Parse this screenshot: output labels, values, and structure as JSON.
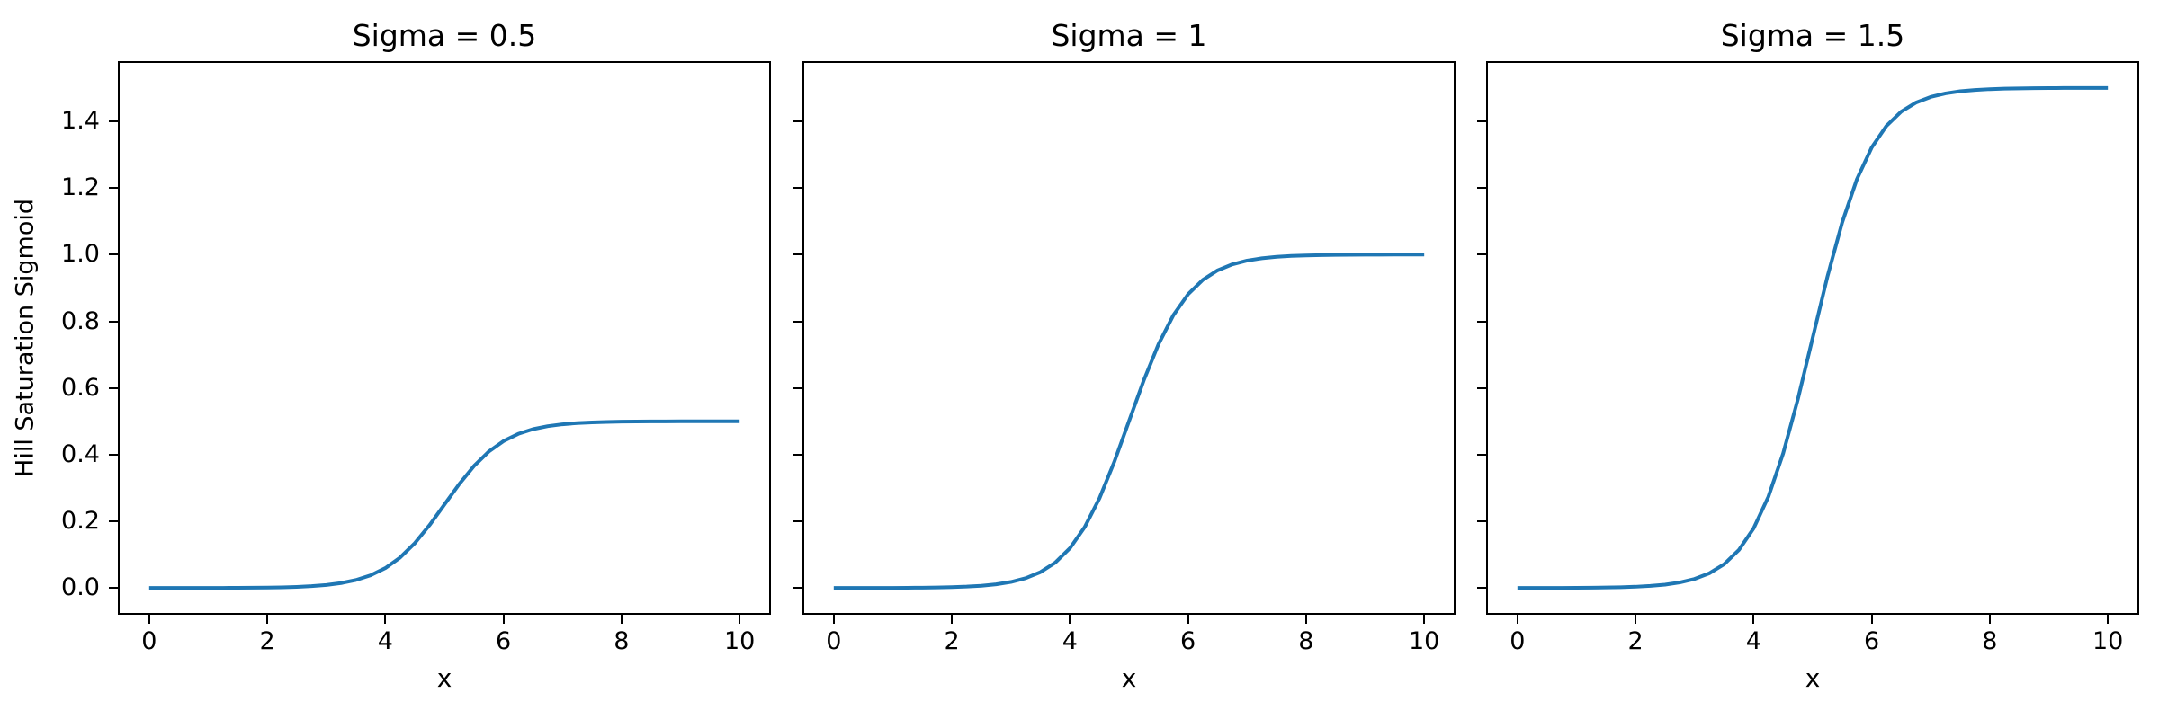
{
  "figure": {
    "background_color": "#ffffff",
    "text_color": "#000000",
    "spine_color": "#000000"
  },
  "ylabel": "Hill Saturation Sigmoid",
  "chart_data": [
    {
      "type": "line",
      "title": "Sigma = 0.5",
      "xlabel": "x",
      "line_color": "#1f77b4",
      "xlim": [
        -0.5,
        10.5
      ],
      "ylim": [
        -0.075,
        1.575
      ],
      "xticks": {
        "values": [
          0,
          2,
          4,
          6,
          8,
          10
        ],
        "labels": [
          "0",
          "2",
          "4",
          "6",
          "8",
          "10"
        ]
      },
      "yticks": {
        "values": [
          0.0,
          0.2,
          0.4,
          0.6,
          0.8,
          1.0,
          1.2,
          1.4
        ],
        "labels": [
          "0.0",
          "0.2",
          "0.4",
          "0.6",
          "0.8",
          "1.0",
          "1.2",
          "1.4"
        ],
        "show_labels": true
      },
      "grid": false,
      "legend": null,
      "x": [
        0,
        0.25,
        0.5,
        0.75,
        1,
        1.25,
        1.5,
        1.75,
        2,
        2.25,
        2.5,
        2.75,
        3,
        3.25,
        3.5,
        3.75,
        4,
        4.25,
        4.5,
        4.75,
        5,
        5.25,
        5.5,
        5.75,
        6,
        6.25,
        6.5,
        6.75,
        7,
        7.25,
        7.5,
        7.75,
        8,
        8.25,
        8.5,
        8.75,
        9,
        9.25,
        9.5,
        9.75,
        10
      ],
      "y": [
        0.0,
        0.0,
        0.0001,
        0.0001,
        0.0002,
        0.0003,
        0.0005,
        0.0008,
        0.0012,
        0.002,
        0.0033,
        0.0055,
        0.009,
        0.0147,
        0.0237,
        0.0379,
        0.0596,
        0.0912,
        0.1345,
        0.1888,
        0.25,
        0.3112,
        0.3655,
        0.4088,
        0.4404,
        0.4621,
        0.4763,
        0.4853,
        0.491,
        0.4945,
        0.4967,
        0.498,
        0.4988,
        0.4992,
        0.4995,
        0.4997,
        0.4998,
        0.4999,
        0.4999,
        0.5,
        0.5
      ]
    },
    {
      "type": "line",
      "title": "Sigma = 1",
      "xlabel": "x",
      "line_color": "#1f77b4",
      "xlim": [
        -0.5,
        10.5
      ],
      "ylim": [
        -0.075,
        1.575
      ],
      "xticks": {
        "values": [
          0,
          2,
          4,
          6,
          8,
          10
        ],
        "labels": [
          "0",
          "2",
          "4",
          "6",
          "8",
          "10"
        ]
      },
      "yticks": {
        "values": [
          0.0,
          0.2,
          0.4,
          0.6,
          0.8,
          1.0,
          1.2,
          1.4
        ],
        "labels": [
          "0.0",
          "0.2",
          "0.4",
          "0.6",
          "0.8",
          "1.0",
          "1.2",
          "1.4"
        ],
        "show_labels": false
      },
      "grid": false,
      "legend": null,
      "x": [
        0,
        0.25,
        0.5,
        0.75,
        1,
        1.25,
        1.5,
        1.75,
        2,
        2.25,
        2.5,
        2.75,
        3,
        3.25,
        3.5,
        3.75,
        4,
        4.25,
        4.5,
        4.75,
        5,
        5.25,
        5.5,
        5.75,
        6,
        6.25,
        6.5,
        6.75,
        7,
        7.25,
        7.5,
        7.75,
        8,
        8.25,
        8.5,
        8.75,
        9,
        9.25,
        9.5,
        9.75,
        10
      ],
      "y": [
        0.0,
        0.0001,
        0.0001,
        0.0002,
        0.0003,
        0.0006,
        0.0009,
        0.0015,
        0.0025,
        0.0041,
        0.0067,
        0.011,
        0.018,
        0.0293,
        0.0474,
        0.0759,
        0.1192,
        0.1824,
        0.2689,
        0.3775,
        0.5,
        0.6225,
        0.7311,
        0.8176,
        0.8808,
        0.9241,
        0.9526,
        0.9707,
        0.982,
        0.989,
        0.9933,
        0.9959,
        0.9975,
        0.9985,
        0.9991,
        0.9994,
        0.9997,
        0.9998,
        0.9999,
        0.9999,
        1.0
      ]
    },
    {
      "type": "line",
      "title": "Sigma = 1.5",
      "xlabel": "x",
      "line_color": "#1f77b4",
      "xlim": [
        -0.5,
        10.5
      ],
      "ylim": [
        -0.075,
        1.575
      ],
      "xticks": {
        "values": [
          0,
          2,
          4,
          6,
          8,
          10
        ],
        "labels": [
          "0",
          "2",
          "4",
          "6",
          "8",
          "10"
        ]
      },
      "yticks": {
        "values": [
          0.0,
          0.2,
          0.4,
          0.6,
          0.8,
          1.0,
          1.2,
          1.4
        ],
        "labels": [
          "0.0",
          "0.2",
          "0.4",
          "0.6",
          "0.8",
          "1.0",
          "1.2",
          "1.4"
        ],
        "show_labels": false
      },
      "grid": false,
      "legend": null,
      "x": [
        0,
        0.25,
        0.5,
        0.75,
        1,
        1.25,
        1.5,
        1.75,
        2,
        2.25,
        2.5,
        2.75,
        3,
        3.25,
        3.5,
        3.75,
        4,
        4.25,
        4.5,
        4.75,
        5,
        5.25,
        5.5,
        5.75,
        6,
        6.25,
        6.5,
        6.75,
        7,
        7.25,
        7.5,
        7.75,
        8,
        8.25,
        8.5,
        8.75,
        9,
        9.25,
        9.5,
        9.75,
        10
      ],
      "y": [
        0.0001,
        0.0001,
        0.0002,
        0.0003,
        0.0005,
        0.0008,
        0.0014,
        0.0023,
        0.0037,
        0.0061,
        0.01,
        0.0165,
        0.027,
        0.044,
        0.0711,
        0.1138,
        0.1788,
        0.2736,
        0.4034,
        0.5663,
        0.75,
        0.9337,
        1.0966,
        1.2264,
        1.3212,
        1.3862,
        1.4289,
        1.456,
        1.473,
        1.4835,
        1.49,
        1.4939,
        1.4963,
        1.4977,
        1.4986,
        1.4992,
        1.4995,
        1.4997,
        1.4998,
        1.4999,
        1.4999
      ]
    }
  ]
}
